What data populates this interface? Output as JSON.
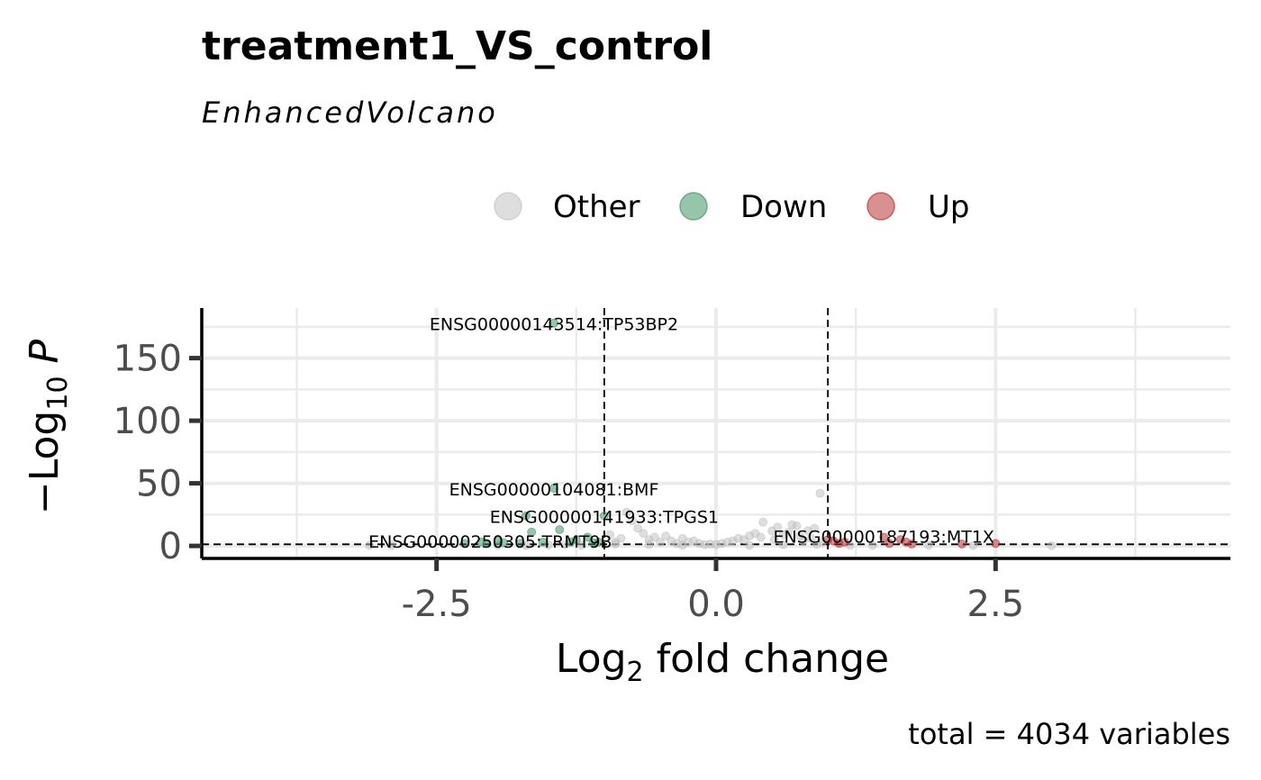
{
  "chart_data": {
    "type": "scatter",
    "title": "treatment1_VS_control",
    "subtitle": "EnhancedVolcano",
    "xlabel": "Log2 fold change",
    "ylabel": "−Log10 P",
    "xlim": [
      -4.6,
      4.6
    ],
    "ylim": [
      -10,
      190
    ],
    "x_ticks": [
      "-2.5",
      "0.0",
      "2.5"
    ],
    "x_tick_values": [
      -2.5,
      0.0,
      2.5
    ],
    "y_ticks": [
      "0",
      "50",
      "100",
      "150"
    ],
    "y_tick_values": [
      0,
      50,
      100,
      150
    ],
    "fc_cutoff": [
      -1,
      1
    ],
    "p_cutoff_line": 1.3,
    "grid": true,
    "legend_position": "top",
    "caption": "total = 4034 variables",
    "legend": [
      {
        "name": "Other",
        "color": "#bebebe"
      },
      {
        "name": "Down",
        "color": "#2e8b57"
      },
      {
        "name": "Up",
        "color": "#b22222"
      }
    ],
    "series": [
      {
        "name": "Other",
        "color": "#bebebe",
        "points": [
          [
            -1.95,
            0.5
          ],
          [
            -1.7,
            0.3
          ],
          [
            -1.5,
            0.6
          ],
          [
            -1.35,
            1.0
          ],
          [
            -1.2,
            0.5
          ],
          [
            -0.95,
            9
          ],
          [
            -0.9,
            3
          ],
          [
            -0.85,
            6
          ],
          [
            -0.8,
            27
          ],
          [
            -0.75,
            20
          ],
          [
            -0.7,
            14
          ],
          [
            -0.65,
            10
          ],
          [
            -0.6,
            5
          ],
          [
            -0.55,
            7
          ],
          [
            -0.5,
            3
          ],
          [
            -0.45,
            8
          ],
          [
            -0.4,
            4
          ],
          [
            -0.35,
            2
          ],
          [
            -0.3,
            6
          ],
          [
            -0.25,
            3
          ],
          [
            -0.2,
            4
          ],
          [
            -0.15,
            2
          ],
          [
            -0.1,
            1
          ],
          [
            -0.05,
            1.5
          ],
          [
            0.0,
            1
          ],
          [
            0.05,
            2
          ],
          [
            0.1,
            3
          ],
          [
            0.15,
            4
          ],
          [
            0.2,
            6
          ],
          [
            0.25,
            5
          ],
          [
            0.3,
            8
          ],
          [
            0.35,
            10
          ],
          [
            0.4,
            7
          ],
          [
            0.42,
            19
          ],
          [
            0.5,
            12
          ],
          [
            0.52,
            5
          ],
          [
            0.55,
            15
          ],
          [
            0.6,
            9
          ],
          [
            0.65,
            11
          ],
          [
            0.68,
            17
          ],
          [
            0.72,
            16
          ],
          [
            0.75,
            8
          ],
          [
            0.78,
            4
          ],
          [
            0.82,
            12
          ],
          [
            0.85,
            6
          ],
          [
            0.88,
            14
          ],
          [
            0.95,
            3
          ],
          [
            0.93,
            42
          ],
          [
            -3.1,
            0.5
          ],
          [
            -2.9,
            0.3
          ],
          [
            1.2,
            0.5
          ],
          [
            1.4,
            0.4
          ],
          [
            1.9,
            0.5
          ],
          [
            2.3,
            0.3
          ],
          [
            3.0,
            0.2
          ],
          [
            -0.3,
            0.5
          ],
          [
            0.3,
            0.4
          ],
          [
            -0.6,
            1.2
          ],
          [
            0.6,
            1.0
          ],
          [
            -0.9,
            1.5
          ],
          [
            0.9,
            1.4
          ]
        ]
      },
      {
        "name": "Down",
        "color": "#2e8b57",
        "points": [
          [
            -1.45,
            178
          ],
          [
            -1.45,
            46
          ],
          [
            -1.0,
            24
          ],
          [
            -1.7,
            24
          ],
          [
            -1.4,
            13
          ],
          [
            -1.65,
            11
          ],
          [
            -1.15,
            7
          ],
          [
            -1.25,
            5
          ],
          [
            -1.95,
            5
          ],
          [
            -2.1,
            3
          ],
          [
            -2.25,
            2
          ],
          [
            -2.05,
            2
          ],
          [
            -1.55,
            3
          ],
          [
            -1.3,
            3
          ],
          [
            -1.1,
            2.5
          ],
          [
            -1.05,
            3
          ],
          [
            -1.75,
            2
          ],
          [
            -1.9,
            2.5
          ]
        ]
      },
      {
        "name": "Up",
        "color": "#b22222",
        "points": [
          [
            1.05,
            4
          ],
          [
            1.1,
            2
          ],
          [
            1.15,
            3
          ],
          [
            1.5,
            7
          ],
          [
            1.55,
            2
          ],
          [
            1.65,
            5
          ],
          [
            1.7,
            3
          ],
          [
            1.75,
            1.5
          ],
          [
            2.2,
            1.5
          ],
          [
            2.5,
            2
          ],
          [
            1.0,
            5
          ]
        ]
      }
    ],
    "labels": [
      {
        "text": "ENSG00000143514:TP53BP2",
        "x": -1.45,
        "y": 178
      },
      {
        "text": "ENSG00000104081:BMF",
        "x": -1.45,
        "y": 46
      },
      {
        "text": "ENSG00000141933:TPGS1",
        "x": -1.0,
        "y": 24
      },
      {
        "text": "ENSG00000250305:TRMT9B",
        "x": -2.1,
        "y": 3
      },
      {
        "text": "ENSG00000187193:MT1X",
        "x": 1.5,
        "y": 7
      }
    ]
  }
}
